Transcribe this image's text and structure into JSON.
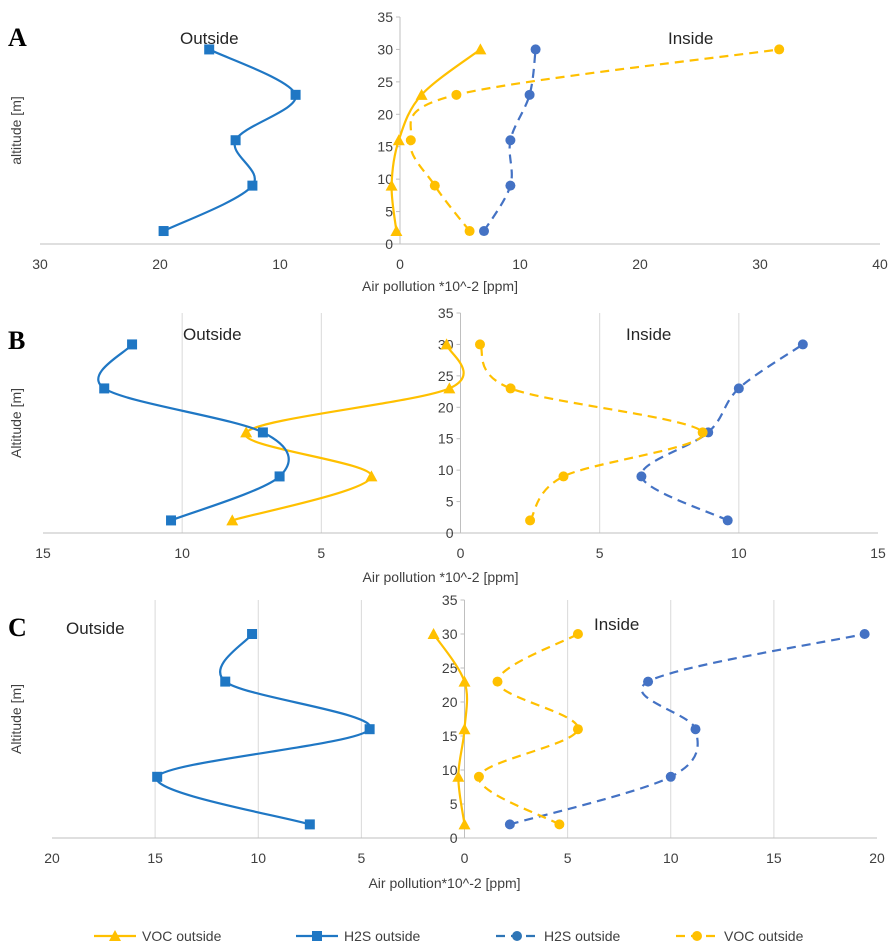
{
  "colors": {
    "voc": "#FFC000",
    "h2s": "#1F77C4",
    "h2s_inside": "#4472C4",
    "grid": "#D9D9D9",
    "axis": "#BFBFBF"
  },
  "legend": [
    {
      "label": "VOC outside",
      "color": "#FFC000",
      "dash": false,
      "marker": "triangle"
    },
    {
      "label": "H2S outside",
      "color": "#1F77C4",
      "dash": false,
      "marker": "square"
    },
    {
      "label": "H2S outside",
      "color": "#2E75B6",
      "dash": true,
      "marker": "circle"
    },
    {
      "label": "VOC outside",
      "color": "#FFC000",
      "dash": true,
      "marker": "circle"
    }
  ],
  "chart_data": [
    {
      "panel": "A",
      "type": "line",
      "outside_label": "Outside",
      "inside_label": "Inside",
      "xlabel": "Air pollution *10^-2 [ppm]",
      "ylabel": "altitude [m]",
      "xlim": [
        -30,
        40
      ],
      "ylim": [
        0,
        35
      ],
      "x_ticks": [
        "30",
        "20",
        "10",
        "0",
        "10",
        "20",
        "30",
        "40"
      ],
      "y_ticks": [
        "0",
        "5",
        "10",
        "15",
        "20",
        "25",
        "30",
        "35"
      ],
      "series": [
        {
          "name": "VOC outside",
          "style": "solid-triangle",
          "x": [
            0.3,
            0.7,
            0.1,
            -1.8,
            -6.7
          ],
          "y": [
            2,
            9,
            16,
            23,
            30
          ]
        },
        {
          "name": "H2S outside",
          "style": "solid-square",
          "x": [
            19.7,
            12.3,
            13.7,
            8.7,
            15.9
          ],
          "y": [
            2,
            9,
            16,
            23,
            30
          ]
        },
        {
          "name": "H2S outside",
          "style": "dashed-circle",
          "x": [
            7.0,
            9.2,
            9.2,
            10.8,
            11.3
          ],
          "y": [
            2,
            9,
            16,
            23,
            30
          ]
        },
        {
          "name": "VOC outside",
          "style": "dashed-circle",
          "x": [
            5.8,
            2.9,
            0.9,
            4.7,
            31.6
          ],
          "y": [
            2,
            9,
            16,
            23,
            30
          ]
        }
      ]
    },
    {
      "panel": "B",
      "type": "line",
      "outside_label": "Outside",
      "inside_label": "Inside",
      "xlabel": "Air pollution *10^-2 [ppm]",
      "ylabel": "Altitude [m]",
      "xlim": [
        -15,
        15
      ],
      "ylim": [
        0,
        35
      ],
      "x_ticks": [
        "15",
        "10",
        "5",
        "0",
        "5",
        "10",
        "15"
      ],
      "y_ticks": [
        "0",
        "5",
        "10",
        "15",
        "20",
        "25",
        "30",
        "35"
      ],
      "series": [
        {
          "name": "VOC outside",
          "style": "solid-triangle",
          "x": [
            8.2,
            3.2,
            7.7,
            0.4,
            0.5
          ],
          "y": [
            2,
            9,
            16,
            23,
            30
          ]
        },
        {
          "name": "H2S outside",
          "style": "solid-square",
          "x": [
            10.4,
            6.5,
            7.1,
            12.8,
            11.8
          ],
          "y": [
            2,
            9,
            16,
            23,
            30
          ]
        },
        {
          "name": "H2S outside",
          "style": "dashed-circle",
          "x": [
            9.6,
            6.5,
            8.9,
            10.0,
            12.3
          ],
          "y": [
            2,
            9,
            16,
            23,
            30
          ]
        },
        {
          "name": "VOC outside",
          "style": "dashed-circle",
          "x": [
            2.5,
            3.7,
            8.7,
            1.8,
            0.7
          ],
          "y": [
            2,
            9,
            16,
            23,
            30
          ]
        }
      ]
    },
    {
      "panel": "C",
      "type": "line",
      "outside_label": "Outside",
      "inside_label": "Inside",
      "xlabel": "Air pollution*10^-2 [ppm]",
      "ylabel": "Altitude [m]",
      "xlim": [
        -20,
        20
      ],
      "ylim": [
        0,
        35
      ],
      "x_ticks": [
        "20",
        "15",
        "10",
        "5",
        "0",
        "5",
        "10",
        "15",
        "20"
      ],
      "y_ticks": [
        "0",
        "5",
        "10",
        "15",
        "20",
        "25",
        "30",
        "35"
      ],
      "series": [
        {
          "name": "VOC outside",
          "style": "solid-triangle",
          "x": [
            0.0,
            0.3,
            0.0,
            0.0,
            1.5
          ],
          "y": [
            2,
            9,
            16,
            23,
            30
          ]
        },
        {
          "name": "H2S outside",
          "style": "solid-square",
          "x": [
            7.5,
            14.9,
            4.6,
            11.6,
            10.3
          ],
          "y": [
            2,
            9,
            16,
            23,
            30
          ]
        },
        {
          "name": "H2S outside",
          "style": "dashed-circle",
          "x": [
            2.2,
            10.0,
            11.2,
            8.9,
            19.4
          ],
          "y": [
            2,
            9,
            16,
            23,
            30
          ]
        },
        {
          "name": "VOC outside",
          "style": "dashed-circle",
          "x": [
            4.6,
            0.7,
            5.5,
            1.6,
            5.5
          ],
          "y": [
            2,
            9,
            16,
            23,
            30
          ]
        }
      ]
    }
  ]
}
